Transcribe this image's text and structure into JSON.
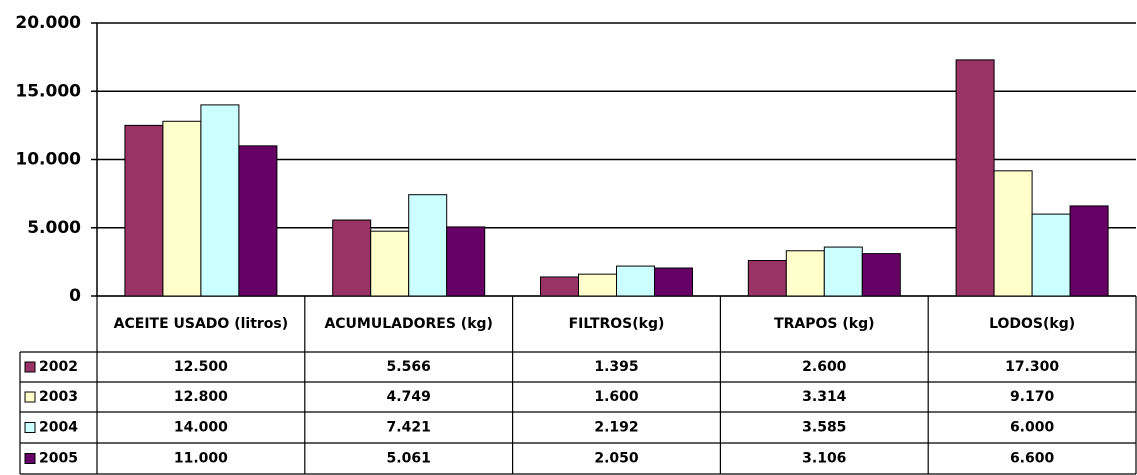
{
  "chart_data": {
    "type": "bar",
    "categories": [
      "ACEITE USADO (litros)",
      "ACUMULADORES (kg)",
      "FILTROS(kg)",
      "TRAPOS (kg)",
      "LODOS(kg)"
    ],
    "series": [
      {
        "name": "2002",
        "color": "#993366",
        "values": [
          12500,
          5566,
          1395,
          2600,
          17300
        ],
        "value_labels": [
          "12.500",
          "5.566",
          "1.395",
          "2.600",
          "17.300"
        ]
      },
      {
        "name": "2003",
        "color": "#FFFFCC",
        "values": [
          12800,
          4749,
          1600,
          3314,
          9170
        ],
        "value_labels": [
          "12.800",
          "4.749",
          "1.600",
          "3.314",
          "9.170"
        ]
      },
      {
        "name": "2004",
        "color": "#CCFFFF",
        "values": [
          14000,
          7421,
          2192,
          3585,
          6000
        ],
        "value_labels": [
          "14.000",
          "7.421",
          "2.192",
          "3.585",
          "6.000"
        ]
      },
      {
        "name": "2005",
        "color": "#660066",
        "values": [
          11000,
          5061,
          2050,
          3106,
          6600
        ],
        "value_labels": [
          "11.000",
          "5.061",
          "2.050",
          "3.106",
          "6.600"
        ]
      }
    ],
    "ylim": [
      0,
      20000
    ],
    "yticks": [
      0,
      {
        "value": 5000,
        "label": "5.000"
      },
      {
        "value": 10000,
        "label": "10.000"
      },
      {
        "value": 15000,
        "label": "15.000"
      },
      {
        "value": 20000,
        "label": "20.000"
      }
    ],
    "grid": true,
    "legend": "table"
  }
}
